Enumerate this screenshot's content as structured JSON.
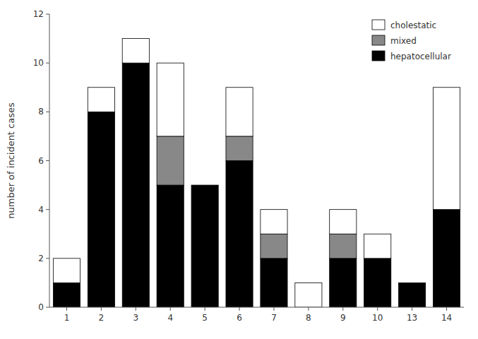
{
  "chart_data": {
    "type": "bar",
    "stacked": true,
    "categories": [
      "1",
      "2",
      "3",
      "4",
      "5",
      "6",
      "7",
      "8",
      "9",
      "10",
      "13",
      "14"
    ],
    "series": [
      {
        "name": "hepatocellular",
        "color": "#000000",
        "values": [
          1,
          8,
          10,
          5,
          5,
          6,
          2,
          0,
          2,
          2,
          1,
          4
        ]
      },
      {
        "name": "mixed",
        "color": "#888888",
        "values": [
          0,
          0,
          0,
          2,
          0,
          1,
          1,
          0,
          1,
          0,
          0,
          0
        ]
      },
      {
        "name": "cholestatic",
        "color": "#ffffff",
        "values": [
          1,
          1,
          1,
          3,
          0,
          2,
          1,
          1,
          1,
          1,
          0,
          5
        ]
      }
    ],
    "ylabel": "number of incident cases",
    "ylim": [
      0,
      12
    ],
    "yticks": [
      0,
      2,
      4,
      6,
      8,
      10,
      12
    ],
    "grid": false,
    "legend": "upper right"
  }
}
